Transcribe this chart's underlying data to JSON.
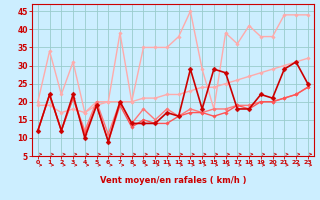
{
  "xlabel": "Vent moyen/en rafales ( km/h )",
  "bg_color": "#cceeff",
  "grid_color": "#99cccc",
  "x_values": [
    0,
    1,
    2,
    3,
    4,
    5,
    6,
    7,
    8,
    9,
    10,
    11,
    12,
    13,
    14,
    15,
    16,
    17,
    18,
    19,
    20,
    21,
    22,
    23
  ],
  "series": [
    {
      "color": "#ffaaaa",
      "lw": 1.0,
      "marker": "D",
      "ms": 1.8,
      "data": [
        20,
        34,
        22,
        31,
        17,
        20,
        20,
        39,
        20,
        35,
        35,
        35,
        38,
        45,
        29,
        18,
        39,
        36,
        41,
        38,
        38,
        44,
        44,
        44
      ]
    },
    {
      "color": "#ffaaaa",
      "lw": 1.0,
      "marker": "D",
      "ms": 1.8,
      "data": [
        19,
        19,
        17,
        18,
        17,
        19,
        20,
        20,
        20,
        21,
        21,
        22,
        22,
        23,
        24,
        24,
        25,
        26,
        27,
        28,
        29,
        30,
        31,
        32
      ]
    },
    {
      "color": "#ff7777",
      "lw": 1.0,
      "marker": "D",
      "ms": 1.8,
      "data": [
        12,
        22,
        12,
        21,
        12,
        20,
        11,
        20,
        14,
        18,
        15,
        18,
        16,
        18,
        17,
        18,
        18,
        19,
        19,
        20,
        20,
        21,
        22,
        24
      ]
    },
    {
      "color": "#ff5555",
      "lw": 1.0,
      "marker": "D",
      "ms": 1.8,
      "data": [
        12,
        22,
        12,
        21,
        11,
        19,
        9,
        19,
        13,
        15,
        14,
        14,
        16,
        17,
        17,
        16,
        17,
        19,
        18,
        20,
        20,
        21,
        22,
        24
      ]
    },
    {
      "color": "#cc0000",
      "lw": 1.2,
      "marker": "D",
      "ms": 2.5,
      "data": [
        12,
        22,
        12,
        22,
        10,
        19,
        9,
        20,
        14,
        14,
        14,
        17,
        16,
        29,
        18,
        29,
        28,
        18,
        18,
        22,
        21,
        29,
        31,
        25
      ]
    }
  ],
  "ylim": [
    5,
    47
  ],
  "xlim": [
    -0.5,
    23.5
  ],
  "yticks": [
    5,
    10,
    15,
    20,
    25,
    30,
    35,
    40,
    45
  ],
  "xticks": [
    0,
    1,
    2,
    3,
    4,
    5,
    6,
    7,
    8,
    9,
    10,
    11,
    12,
    13,
    14,
    15,
    16,
    17,
    18,
    19,
    20,
    21,
    22,
    23
  ],
  "axis_label_color": "#cc0000",
  "tick_color": "#cc0000",
  "spine_color": "#cc0000"
}
